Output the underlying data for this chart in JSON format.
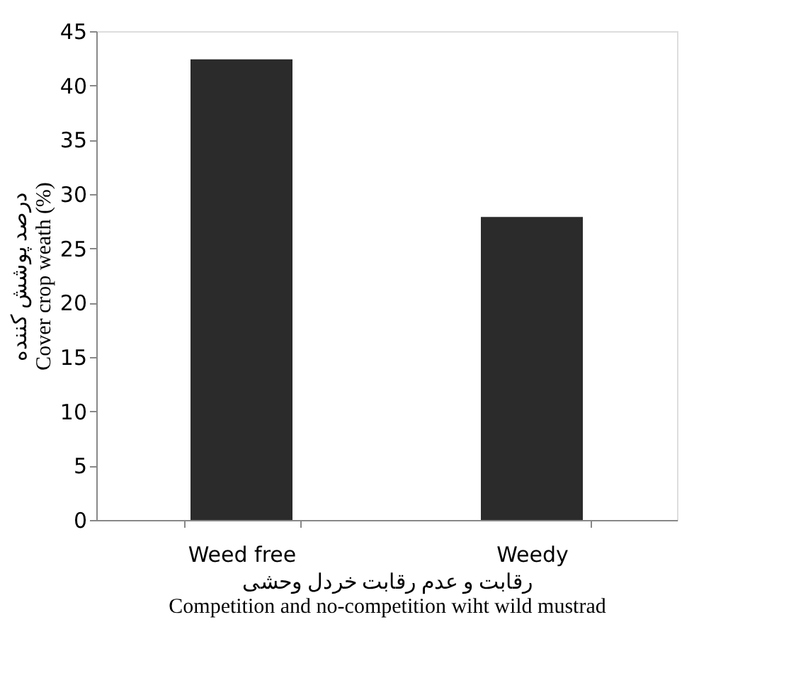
{
  "chart_data": {
    "type": "bar",
    "categories": [
      "Weed free",
      "Weedy"
    ],
    "values": [
      42.4,
      27.9
    ],
    "color": "#2b2b2b",
    "xlabel": "رقابت و عدم رقابت خردل وحشی\nCompetition and no-competition wiht wild mustrad",
    "ylabel": "درصد پوشش کننده\nCover crop weath (%)",
    "ylim": [
      0,
      45
    ],
    "yticks": [
      0,
      5,
      10,
      15,
      20,
      25,
      30,
      35,
      40,
      45
    ],
    "grid": false
  }
}
